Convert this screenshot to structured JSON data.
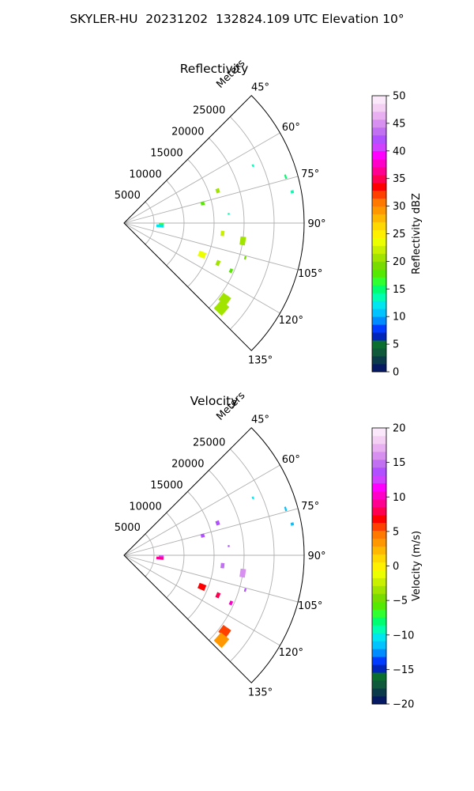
{
  "figure": {
    "suptitle": "SKYLER-HU  20231202  132824.109 UTC Elevation 10°"
  },
  "chart_data": [
    {
      "type": "polar-sector",
      "title": "Reflectivity",
      "radial_label": "Meters",
      "radial_ticks": [
        "5000",
        "10000",
        "15000",
        "20000",
        "25000"
      ],
      "radial_tick_values": [
        5000,
        10000,
        15000,
        20000,
        25000
      ],
      "radial_max": 30000,
      "azimuth_ticks": [
        "45°",
        "60°",
        "75°",
        "90°",
        "105°",
        "120°",
        "135°"
      ],
      "azimuth_tick_values": [
        45,
        60,
        75,
        90,
        105,
        120,
        135
      ],
      "azimuth_range": [
        45,
        135
      ],
      "grid": true,
      "colorbar": {
        "label": "Reflectivity dBZ",
        "min": 0,
        "max": 50,
        "ticks": [
          "0",
          "5",
          "10",
          "15",
          "20",
          "25",
          "30",
          "35",
          "40",
          "45",
          "50"
        ],
        "tick_values": [
          0,
          5,
          10,
          15,
          20,
          25,
          30,
          35,
          40,
          45,
          50
        ],
        "colors": [
          "#061a63",
          "#0b3a4a",
          "#0f5a3a",
          "#0a6e2e",
          "#0025b8",
          "#003cff",
          "#008cff",
          "#00c3ff",
          "#00e6f0",
          "#00ffb0",
          "#00ff70",
          "#30ff30",
          "#55e800",
          "#78dc00",
          "#a0e400",
          "#c8f000",
          "#ecff00",
          "#fff000",
          "#ffd800",
          "#ffb800",
          "#ff9800",
          "#ff7800",
          "#ff4000",
          "#ff0000",
          "#ff0050",
          "#ff0090",
          "#ff00c8",
          "#ff00ff",
          "#d040ff",
          "#b050ff",
          "#c070f0",
          "#d890f0",
          "#e8b0f0",
          "#f4d0f4",
          "#fbe8fb"
        ]
      },
      "echoes": [
        {
          "az": 94.5,
          "r": 6000,
          "dr": 1200,
          "da": 4.5,
          "value": 12
        },
        {
          "az": 91.5,
          "r": 6200,
          "dr": 800,
          "da": 2.5,
          "value": 17
        },
        {
          "az": 76,
          "r": 13500,
          "dr": 600,
          "da": 2.5,
          "value": 18
        },
        {
          "az": 71,
          "r": 16500,
          "dr": 600,
          "da": 2.5,
          "value": 20
        },
        {
          "az": 66,
          "r": 23500,
          "dr": 300,
          "da": 1,
          "value": 13
        },
        {
          "az": 74,
          "r": 28000,
          "dr": 300,
          "da": 1.5,
          "value": 15
        },
        {
          "az": 79.5,
          "r": 28500,
          "dr": 500,
          "da": 1,
          "value": 13
        },
        {
          "az": 85,
          "r": 17500,
          "dr": 300,
          "da": 1,
          "value": 14
        },
        {
          "az": 96,
          "r": 16500,
          "dr": 600,
          "da": 3,
          "value": 22
        },
        {
          "az": 98.5,
          "r": 20000,
          "dr": 900,
          "da": 4,
          "value": 20
        },
        {
          "az": 106,
          "r": 21000,
          "dr": 300,
          "da": 1.5,
          "value": 19
        },
        {
          "az": 112,
          "r": 14000,
          "dr": 1200,
          "da": 4,
          "value": 24
        },
        {
          "az": 113,
          "r": 17000,
          "dr": 600,
          "da": 3,
          "value": 20
        },
        {
          "az": 114,
          "r": 19500,
          "dr": 500,
          "da": 2,
          "value": 18
        },
        {
          "az": 127,
          "r": 21000,
          "dr": 1600,
          "da": 4,
          "value": 21
        },
        {
          "az": 131,
          "r": 21500,
          "dr": 1800,
          "da": 5,
          "value": 20
        }
      ]
    },
    {
      "type": "polar-sector",
      "title": "Velocity",
      "radial_label": "Meters",
      "radial_ticks": [
        "5000",
        "10000",
        "15000",
        "20000",
        "25000"
      ],
      "radial_tick_values": [
        5000,
        10000,
        15000,
        20000,
        25000
      ],
      "radial_max": 30000,
      "azimuth_ticks": [
        "45°",
        "60°",
        "75°",
        "90°",
        "105°",
        "120°",
        "135°"
      ],
      "azimuth_tick_values": [
        45,
        60,
        75,
        90,
        105,
        120,
        135
      ],
      "azimuth_range": [
        45,
        135
      ],
      "grid": true,
      "colorbar": {
        "label": "Velocity (m/s)",
        "min": -20,
        "max": 20,
        "ticks": [
          "−20",
          "−15",
          "−10",
          "−5",
          "0",
          "5",
          "10",
          "15",
          "20"
        ],
        "tick_values": [
          -20,
          -15,
          -10,
          -5,
          0,
          5,
          10,
          15,
          20
        ],
        "colors": [
          "#061a63",
          "#0b3a4a",
          "#0f5a3a",
          "#0a6e2e",
          "#0025b8",
          "#003cff",
          "#008cff",
          "#00c3ff",
          "#00e6f0",
          "#00ffb0",
          "#00ff70",
          "#30ff30",
          "#55e800",
          "#78dc00",
          "#a0e400",
          "#c8f000",
          "#ecff00",
          "#fff000",
          "#ffd800",
          "#ffb800",
          "#ff9800",
          "#ff7800",
          "#ff4000",
          "#ff0000",
          "#ff0050",
          "#ff0090",
          "#ff00c8",
          "#ff00ff",
          "#d040ff",
          "#b050ff",
          "#c070f0",
          "#d890f0",
          "#e8b0f0",
          "#f4d0f4",
          "#fbe8fb"
        ]
      },
      "echoes": [
        {
          "az": 94.5,
          "r": 6000,
          "dr": 1200,
          "da": 4.5,
          "value": 9
        },
        {
          "az": 91.5,
          "r": 6200,
          "dr": 800,
          "da": 2.5,
          "value": 13
        },
        {
          "az": 76,
          "r": 13500,
          "dr": 600,
          "da": 2.5,
          "value": 14
        },
        {
          "az": 71,
          "r": 16500,
          "dr": 600,
          "da": 2.5,
          "value": 14
        },
        {
          "az": 66,
          "r": 23500,
          "dr": 300,
          "da": 1,
          "value": -10
        },
        {
          "az": 74,
          "r": 28000,
          "dr": 300,
          "da": 1.5,
          "value": -11
        },
        {
          "az": 79.5,
          "r": 28500,
          "dr": 500,
          "da": 1,
          "value": -12
        },
        {
          "az": 85,
          "r": 17500,
          "dr": 300,
          "da": 1,
          "value": 14
        },
        {
          "az": 96,
          "r": 16500,
          "dr": 600,
          "da": 3,
          "value": 15
        },
        {
          "az": 98.5,
          "r": 20000,
          "dr": 900,
          "da": 4,
          "value": 16
        },
        {
          "az": 106,
          "r": 21000,
          "dr": 300,
          "da": 1.5,
          "value": 14
        },
        {
          "az": 112,
          "r": 14000,
          "dr": 1200,
          "da": 4,
          "value": 7
        },
        {
          "az": 113,
          "r": 17000,
          "dr": 600,
          "da": 3,
          "value": 8
        },
        {
          "az": 114,
          "r": 19500,
          "dr": 500,
          "da": 2,
          "value": 10
        },
        {
          "az": 127,
          "r": 21000,
          "dr": 1600,
          "da": 4,
          "value": 6
        },
        {
          "az": 131,
          "r": 21500,
          "dr": 1800,
          "da": 5,
          "value": 3
        }
      ]
    }
  ]
}
